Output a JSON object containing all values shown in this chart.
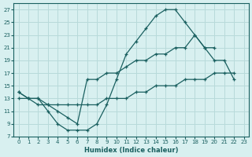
{
  "title": "",
  "xlabel": "Humidex (Indice chaleur)",
  "ylabel": "",
  "bg_color": "#d8f0f0",
  "grid_color": "#b8dada",
  "line_color": "#1a6060",
  "xlim": [
    -0.5,
    23.5
  ],
  "ylim": [
    7,
    28
  ],
  "xticks": [
    0,
    1,
    2,
    3,
    4,
    5,
    6,
    7,
    8,
    9,
    10,
    11,
    12,
    13,
    14,
    15,
    16,
    17,
    18,
    19,
    20,
    21,
    22,
    23
  ],
  "yticks": [
    7,
    9,
    11,
    13,
    15,
    17,
    19,
    21,
    23,
    25,
    27
  ],
  "curve1_x": [
    0,
    1,
    2,
    3,
    4,
    5,
    6,
    7,
    8,
    9,
    10,
    11,
    12,
    13,
    14,
    15,
    16,
    17,
    18,
    19,
    20,
    21,
    22
  ],
  "curve1_y": [
    14,
    13,
    13,
    11,
    9,
    8,
    8,
    8,
    9,
    12,
    16,
    20,
    22,
    24,
    26,
    27,
    27,
    25,
    23,
    21,
    19,
    19,
    16
  ],
  "curve2_x": [
    0,
    1,
    2,
    3,
    4,
    5,
    6,
    7,
    8,
    9,
    10,
    11,
    12,
    13,
    14,
    15,
    16,
    17,
    18,
    19,
    20
  ],
  "curve2_y": [
    14,
    13,
    13,
    12,
    11,
    10,
    9,
    16,
    16,
    17,
    17,
    18,
    19,
    19,
    20,
    20,
    21,
    21,
    23,
    21,
    21
  ],
  "curve3_x": [
    0,
    1,
    2,
    3,
    4,
    5,
    6,
    7,
    8,
    9,
    10,
    11,
    12,
    13,
    14,
    15,
    16,
    17,
    18,
    19,
    20,
    21,
    22
  ],
  "curve3_y": [
    13,
    13,
    12,
    12,
    12,
    12,
    12,
    12,
    12,
    13,
    13,
    13,
    14,
    14,
    15,
    15,
    15,
    16,
    16,
    16,
    17,
    17,
    17
  ]
}
